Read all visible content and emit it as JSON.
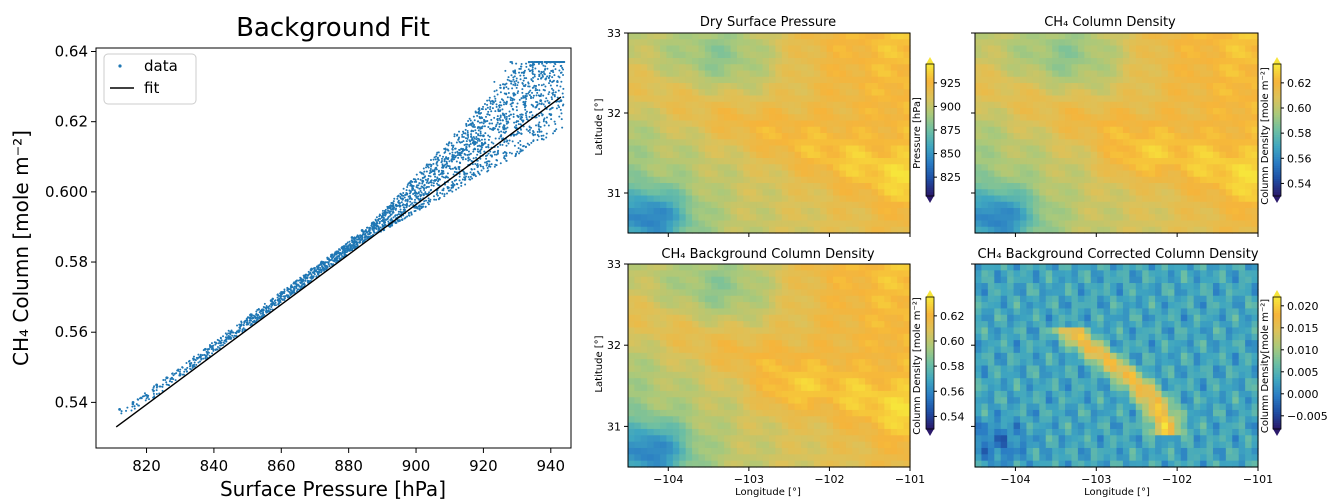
{
  "colormap": [
    "#2b1a6b",
    "#1f4ea3",
    "#2a7cc4",
    "#3fa6c0",
    "#6dbfa3",
    "#a9c97b",
    "#dcc25a",
    "#f6b43a",
    "#f7e53a"
  ],
  "chart_data": [
    {
      "type": "scatter",
      "title": "Background Fit",
      "xlabel": "Surface Pressure [hPa]",
      "ylabel": "CH₄ Column [mole m⁻²]",
      "xlim": [
        805,
        946
      ],
      "ylim": [
        0.527,
        0.641
      ],
      "xticks": [
        820,
        840,
        860,
        880,
        900,
        920,
        940
      ],
      "yticks": [
        0.54,
        0.56,
        0.58,
        0.6,
        0.62,
        0.64
      ],
      "ytick_labels": [
        "0.54",
        "0.56",
        "0.58",
        "0.600",
        "0.62",
        "0.64"
      ],
      "legend_position": "top-left",
      "series": [
        {
          "name": "data",
          "style": "points",
          "color": "#1f77b4",
          "points": [
            [
              812,
              0.538
            ],
            [
              816,
              0.54
            ],
            [
              820,
              0.542
            ],
            [
              823,
              0.545
            ],
            [
              826,
              0.547
            ],
            [
              830,
              0.548
            ],
            [
              833,
              0.551
            ],
            [
              836,
              0.553
            ],
            [
              839,
              0.556
            ],
            [
              842,
              0.557
            ],
            [
              845,
              0.56
            ],
            [
              848,
              0.562
            ],
            [
              851,
              0.565
            ],
            [
              854,
              0.566
            ],
            [
              857,
              0.569
            ],
            [
              860,
              0.571
            ],
            [
              863,
              0.573
            ],
            [
              866,
              0.575
            ],
            [
              869,
              0.578
            ],
            [
              872,
              0.58
            ],
            [
              875,
              0.582
            ],
            [
              878,
              0.584
            ],
            [
              881,
              0.587
            ],
            [
              884,
              0.589
            ],
            [
              887,
              0.591
            ],
            [
              890,
              0.593
            ],
            [
              893,
              0.596
            ],
            [
              896,
              0.598
            ],
            [
              899,
              0.601
            ],
            [
              902,
              0.603
            ],
            [
              905,
              0.606
            ],
            [
              908,
              0.607
            ],
            [
              911,
              0.61
            ],
            [
              914,
              0.612
            ],
            [
              917,
              0.614
            ],
            [
              920,
              0.616
            ],
            [
              923,
              0.618
            ],
            [
              926,
              0.622
            ],
            [
              929,
              0.628
            ],
            [
              932,
              0.634
            ],
            [
              934,
              0.636
            ],
            [
              937,
              0.626
            ],
            [
              940,
              0.622
            ],
            [
              943,
              0.626
            ]
          ]
        },
        {
          "name": "fit",
          "style": "line",
          "color": "#000000",
          "x": [
            811,
            943
          ],
          "y": [
            0.533,
            0.627
          ]
        }
      ]
    },
    {
      "type": "heatmap",
      "title": "Dry Surface Pressure",
      "xlabel": "",
      "ylabel": "Latitude [°]",
      "xlim": [
        -104.5,
        -101
      ],
      "ylim": [
        30.5,
        33
      ],
      "xticks": [
        -104,
        -103,
        -102,
        -101
      ],
      "yticks": [
        31,
        32,
        33
      ],
      "colorbar": {
        "label": "Pressure [hPa]",
        "ticks": [
          "925",
          "900",
          "875",
          "850",
          "825"
        ],
        "range": [
          805,
          945
        ],
        "extend": "both"
      }
    },
    {
      "type": "heatmap",
      "title": "CH₄ Column Density",
      "xlabel": "",
      "ylabel": "",
      "xlim": [
        -104.5,
        -101
      ],
      "ylim": [
        30.5,
        33
      ],
      "xticks": [
        -104,
        -103,
        -102,
        -101
      ],
      "yticks": [
        31,
        32,
        33
      ],
      "colorbar": {
        "label": "Column Density [mole m⁻²]",
        "ticks": [
          "0.62",
          "0.60",
          "0.58",
          "0.56",
          "0.54"
        ],
        "range": [
          0.53,
          0.635
        ],
        "extend": "both"
      }
    },
    {
      "type": "heatmap",
      "title": "CH₄ Background Column Density",
      "xlabel": "Longitude [°]",
      "ylabel": "Latitude [°]",
      "xlim": [
        -104.5,
        -101
      ],
      "ylim": [
        30.5,
        33
      ],
      "xticks": [
        -104,
        -103,
        -102,
        -101
      ],
      "yticks": [
        31,
        32,
        33
      ],
      "colorbar": {
        "label": "Column Density [mole m⁻²]",
        "ticks": [
          "0.62",
          "0.60",
          "0.58",
          "0.56",
          "0.54"
        ],
        "range": [
          0.53,
          0.635
        ],
        "extend": "both"
      }
    },
    {
      "type": "heatmap",
      "title": "CH₄ Background Corrected Column Density",
      "xlabel": "Longitude [°]",
      "ylabel": "",
      "xlim": [
        -104.5,
        -101
      ],
      "ylim": [
        30.5,
        33
      ],
      "xticks": [
        -104,
        -103,
        -102,
        -101
      ],
      "yticks": [
        31,
        32,
        33
      ],
      "colorbar": {
        "label": "Column Density[mole m⁻²]",
        "ticks": [
          "0.020",
          "0.015",
          "0.010",
          "0.005",
          "0.000",
          "−0.005"
        ],
        "range": [
          -0.008,
          0.022
        ],
        "extend": "both"
      }
    }
  ]
}
